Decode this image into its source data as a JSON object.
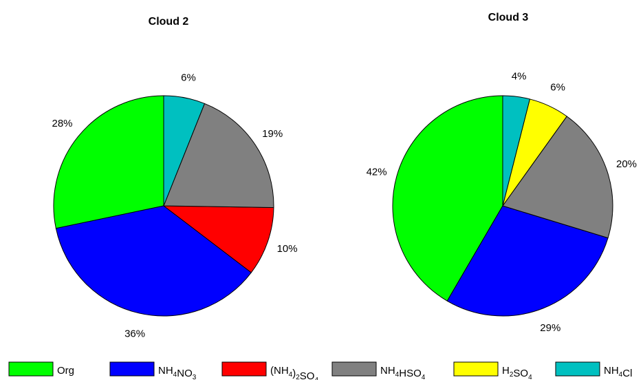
{
  "chart_data": [
    {
      "type": "pie",
      "title": "Cloud 2",
      "categories": [
        "Org",
        "NH4NO3",
        "(NH4)2SO4",
        "NH4HSO4",
        "NH4Cl"
      ],
      "values": [
        28,
        36,
        10,
        19,
        6
      ],
      "labels": [
        "28%",
        "36%",
        "10%",
        "19%",
        "6%"
      ]
    },
    {
      "type": "pie",
      "title": "Cloud 3",
      "categories": [
        "Org",
        "NH4NO3",
        "NH4HSO4",
        "H2SO4",
        "NH4Cl"
      ],
      "values": [
        42,
        29,
        20,
        6,
        4
      ],
      "labels": [
        "42%",
        "29%",
        "20%",
        "6%",
        "4%"
      ]
    }
  ],
  "legend": {
    "placement": "bottom",
    "items": [
      {
        "key": "Org",
        "parts": [
          {
            "t": "Org"
          }
        ]
      },
      {
        "key": "NH4NO3",
        "parts": [
          {
            "t": "NH"
          },
          {
            "t": "4",
            "sub": true
          },
          {
            "t": "NO"
          },
          {
            "t": "3",
            "sub": true
          }
        ]
      },
      {
        "key": "(NH4)2SO4",
        "parts": [
          {
            "t": "(NH"
          },
          {
            "t": "4",
            "sub": true
          },
          {
            "t": ")"
          },
          {
            "t": "2",
            "sub": true
          },
          {
            "t": "SO"
          },
          {
            "t": "4",
            "sub": true
          }
        ]
      },
      {
        "key": "NH4HSO4",
        "parts": [
          {
            "t": "NH"
          },
          {
            "t": "4",
            "sub": true
          },
          {
            "t": "HSO"
          },
          {
            "t": "4",
            "sub": true
          }
        ]
      },
      {
        "key": "H2SO4",
        "parts": [
          {
            "t": "H"
          },
          {
            "t": "2",
            "sub": true
          },
          {
            "t": "SO"
          },
          {
            "t": "4",
            "sub": true
          }
        ]
      },
      {
        "key": "NH4Cl",
        "parts": [
          {
            "t": "NH"
          },
          {
            "t": "4",
            "sub": true
          },
          {
            "t": "Cl"
          }
        ]
      }
    ]
  },
  "colors": {
    "Org": "#00ff00",
    "NH4NO3": "#0000ff",
    "(NH4)2SO4": "#ff0000",
    "NH4HSO4": "#808080",
    "H2SO4": "#ffff00",
    "NH4Cl": "#00c0c0"
  }
}
